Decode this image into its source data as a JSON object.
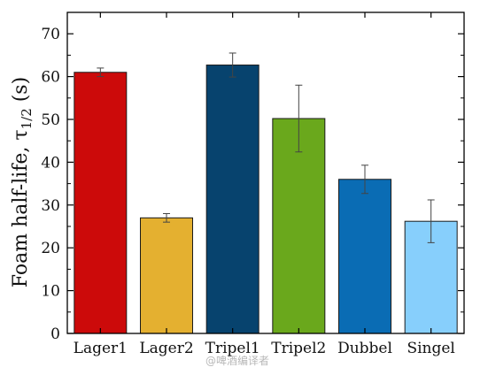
{
  "chart_data": {
    "type": "bar",
    "title": "",
    "xlabel": "",
    "ylabel_main": "Foam half-life, τ",
    "ylabel_sub": "1/2",
    "ylabel_unit": " (s)",
    "ylim": [
      0,
      75
    ],
    "yticks": [
      0,
      10,
      20,
      30,
      40,
      50,
      60,
      70
    ],
    "grid": false,
    "categories": [
      "Lager1",
      "Lager2",
      "Tripel1",
      "Tripel2",
      "Dubbel",
      "Singel"
    ],
    "values": [
      61,
      27,
      62.7,
      50.2,
      36,
      26.2
    ],
    "errors": [
      1.0,
      1.0,
      2.8,
      7.8,
      3.3,
      5.0
    ],
    "colors": [
      "#cc0a0a",
      "#e4b030",
      "#07436e",
      "#6aa81c",
      "#0a6cb4",
      "#87cffc"
    ]
  },
  "watermark": "@啤酒编译者"
}
